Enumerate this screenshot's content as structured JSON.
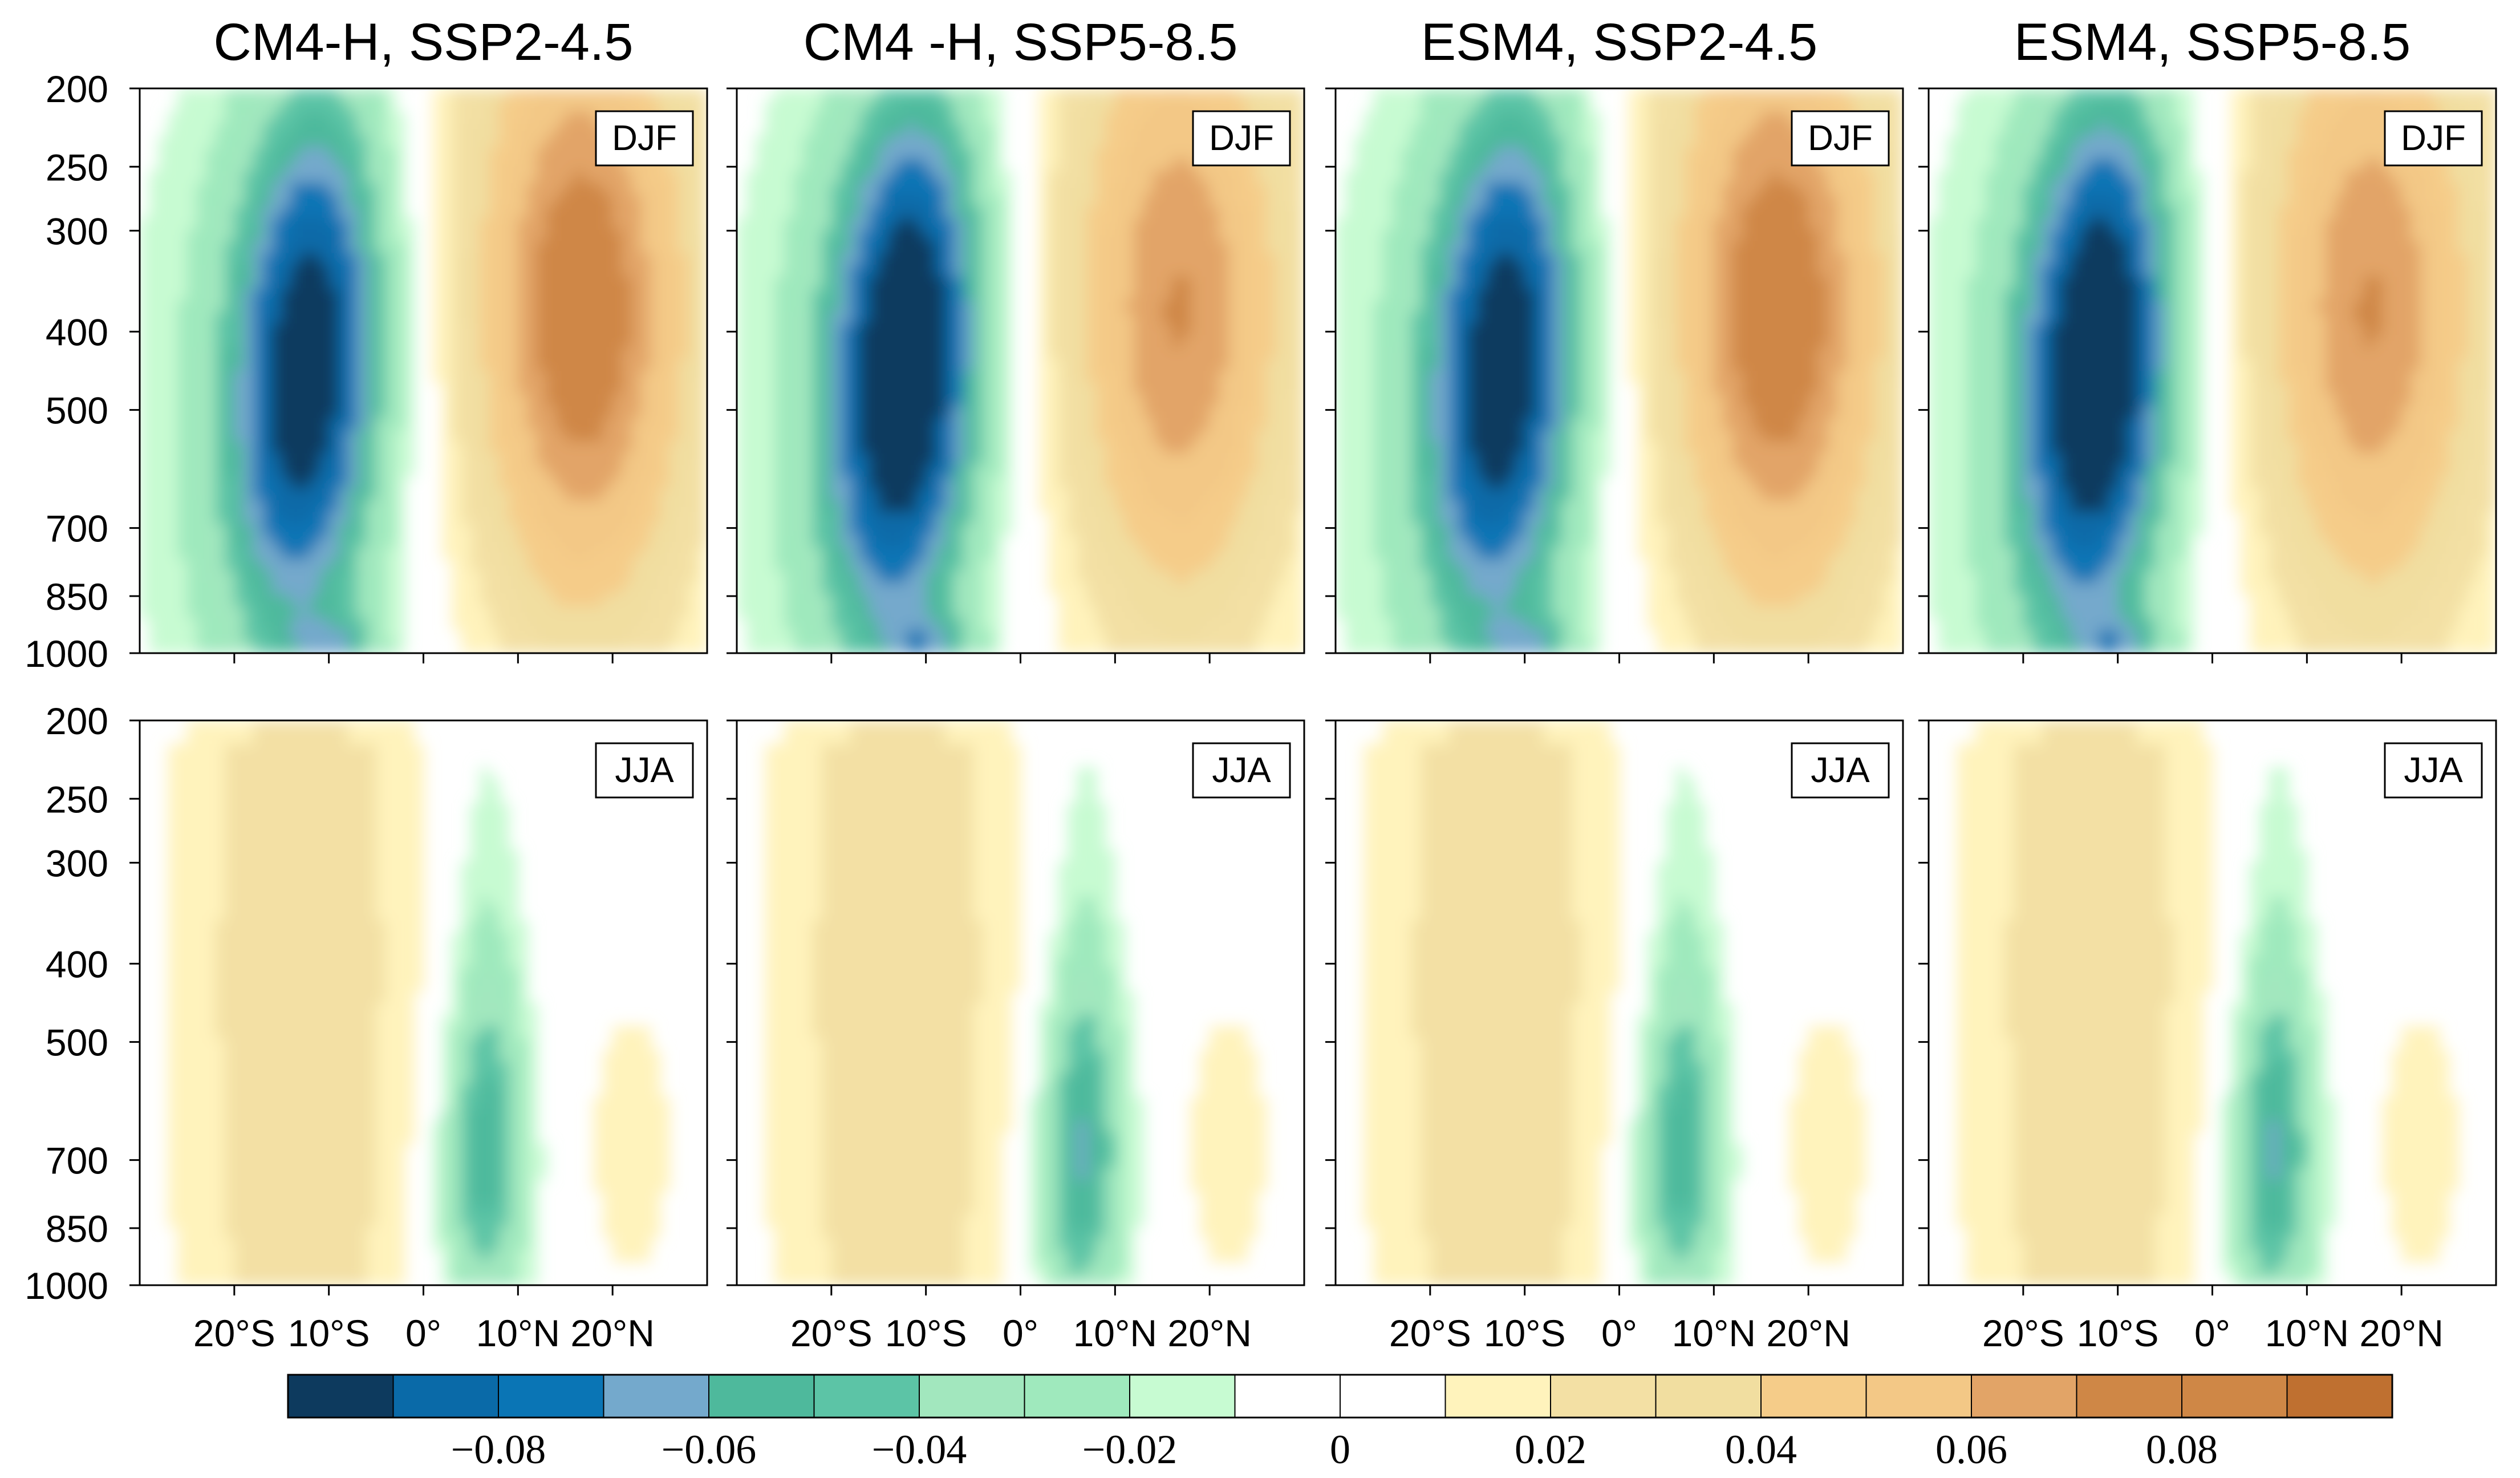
{
  "chart_data": {
    "type": "heatmap",
    "panels": [
      {
        "title": "CM4-H, SSP2-4.5",
        "scenario": "SSP2-4.5",
        "model": "CM4-H",
        "sign": "neg",
        "djf_peak": -0.09,
        "djf_peak_pos": 0.065,
        "jja_peak_neg": -0.04,
        "jja_peak_pos": 0.03
      },
      {
        "title": "CM4 -H, SSP5-8.5",
        "scenario": "SSP5-8.5",
        "model": "CM4-H",
        "sign": "neg",
        "djf_peak": -0.1,
        "djf_peak_pos": 0.055,
        "jja_peak_neg": -0.045,
        "jja_peak_pos": 0.03
      },
      {
        "title": "ESM4, SSP2-4.5",
        "scenario": "SSP2-4.5",
        "model": "ESM4",
        "sign": "neg",
        "djf_peak": -0.09,
        "djf_peak_pos": 0.065,
        "jja_peak_neg": -0.04,
        "jja_peak_pos": 0.03
      },
      {
        "title": "ESM4, SSP5-8.5",
        "scenario": "SSP5-8.5",
        "model": "ESM4",
        "sign": "neg",
        "djf_peak": -0.1,
        "djf_peak_pos": 0.055,
        "jja_peak_neg": -0.045,
        "jja_peak_pos": 0.03
      }
    ],
    "seasons": [
      "DJF",
      "JJA"
    ],
    "y_axis": {
      "ticks": [
        "200",
        "250",
        "300",
        "400",
        "500",
        "700",
        "850",
        "1000"
      ],
      "values": [
        200,
        250,
        300,
        400,
        500,
        700,
        850,
        1000
      ],
      "range": [
        200,
        1000
      ],
      "scale": "log",
      "inverted": true,
      "label": ""
    },
    "x_axis": {
      "ticks": [
        "20°S",
        "10°S",
        "0°",
        "10°N",
        "20°N"
      ],
      "values": [
        -20,
        -10,
        0,
        10,
        20
      ],
      "range": [
        -30,
        30
      ],
      "label": ""
    },
    "colorbar": {
      "levels": [
        -0.1,
        -0.09,
        -0.08,
        -0.07,
        -0.06,
        -0.05,
        -0.04,
        -0.03,
        -0.02,
        -0.01,
        0,
        0.01,
        0.02,
        0.03,
        0.04,
        0.05,
        0.06,
        0.07,
        0.08,
        0.09,
        0.1
      ],
      "colors": [
        "#0d3a5e",
        "#0a6aa8",
        "#0a75b5",
        "#74a9cc",
        "#4eb99c",
        "#5cc4a6",
        "#a2e7be",
        "#9fe9bd",
        "#c7fbd2",
        "#ffffff",
        "#ffffff",
        "#fff3bc",
        "#f3e0a4",
        "#f1dea0",
        "#f5cc89",
        "#f3c886",
        "#e2a467",
        "#cf8746",
        "#cf8746",
        "#bf7030"
      ],
      "tick_labels": [
        "−0.08",
        "−0.06",
        "−0.04",
        "−0.02",
        "0",
        "0.02",
        "0.04",
        "0.06",
        "0.08"
      ],
      "tick_values": [
        -0.08,
        -0.06,
        -0.04,
        -0.02,
        0,
        0.02,
        0.04,
        0.06,
        0.08
      ]
    }
  }
}
